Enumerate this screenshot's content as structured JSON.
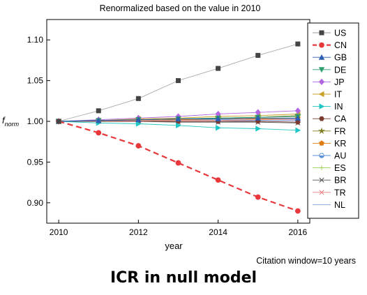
{
  "chart_data": {
    "type": "line",
    "title": "Renormalized based on the value in 2010",
    "xlabel": "year",
    "ylabel": "f",
    "ylabel_sub": "norm",
    "xlim": [
      2009.7,
      2016.3
    ],
    "ylim": [
      0.875,
      1.125
    ],
    "xticks": [
      2010,
      2012,
      2014,
      2016
    ],
    "yticks": [
      0.9,
      0.95,
      1.0,
      1.05,
      1.1
    ],
    "ytick_labels": [
      "0.90",
      "0.95",
      "1.00",
      "1.05",
      "1.10"
    ],
    "grid": false,
    "legend_position": "right",
    "note": "Citation window=10 years",
    "x": [
      2010,
      2011,
      2012,
      2013,
      2014,
      2015,
      2016
    ],
    "series": [
      {
        "name": "US",
        "color": "#444444",
        "marker": "square",
        "values": [
          1.0,
          1.013,
          1.028,
          1.05,
          1.065,
          1.081,
          1.095
        ]
      },
      {
        "name": "CN",
        "color": "#e8383b",
        "marker": "circle",
        "dashed": true,
        "values": [
          1.0,
          0.986,
          0.97,
          0.949,
          0.928,
          0.907,
          0.89
        ]
      },
      {
        "name": "GB",
        "color": "#2a5db0",
        "marker": "triangle",
        "values": [
          1.0,
          1.001,
          1.002,
          1.003,
          1.003,
          1.004,
          1.004
        ]
      },
      {
        "name": "DE",
        "color": "#2e9e6e",
        "marker": "tri-down",
        "values": [
          1.0,
          1.001,
          1.002,
          1.003,
          1.004,
          1.005,
          1.006
        ]
      },
      {
        "name": "JP",
        "color": "#b266e0",
        "marker": "diamond",
        "values": [
          1.0,
          1.002,
          1.004,
          1.006,
          1.009,
          1.011,
          1.013
        ]
      },
      {
        "name": "IT",
        "color": "#c9a227",
        "marker": "tri-left",
        "values": [
          1.0,
          1.001,
          1.003,
          1.004,
          1.006,
          1.007,
          1.009
        ]
      },
      {
        "name": "IN",
        "color": "#1fc6c6",
        "marker": "tri-right",
        "values": [
          1.0,
          0.998,
          0.997,
          0.995,
          0.992,
          0.991,
          0.989
        ]
      },
      {
        "name": "CA",
        "color": "#7a3b2e",
        "marker": "hexagon",
        "values": [
          1.0,
          1.0,
          1.0,
          1.0,
          1.0,
          1.0,
          0.999
        ]
      },
      {
        "name": "FR",
        "color": "#7d7d1f",
        "marker": "star",
        "values": [
          1.0,
          1.001,
          1.002,
          1.003,
          1.004,
          1.005,
          1.007
        ]
      },
      {
        "name": "KR",
        "color": "#e07b10",
        "marker": "pentagon",
        "values": [
          1.0,
          1.001,
          1.002,
          1.002,
          1.003,
          1.003,
          1.004
        ]
      },
      {
        "name": "AU",
        "color": "#5b8fd6",
        "marker": "circle-half",
        "values": [
          1.0,
          1.0,
          1.0,
          1.0,
          1.0,
          1.001,
          1.001
        ]
      },
      {
        "name": "ES",
        "color": "#9acd5a",
        "marker": "plus",
        "values": [
          1.0,
          1.001,
          1.002,
          1.002,
          1.003,
          1.003,
          1.004
        ]
      },
      {
        "name": "BR",
        "color": "#555555",
        "marker": "x",
        "values": [
          1.0,
          1.0,
          1.0,
          0.999,
          0.999,
          0.999,
          0.998
        ]
      },
      {
        "name": "TR",
        "color": "#f08080",
        "marker": "x",
        "values": [
          1.0,
          1.0,
          1.001,
          1.001,
          1.001,
          1.002,
          1.002
        ]
      },
      {
        "name": "NL",
        "color": "#7fa7e0",
        "marker": "none",
        "values": [
          1.0,
          1.001,
          1.001,
          1.002,
          1.002,
          1.003,
          1.003
        ]
      }
    ]
  },
  "caption": "ICR in null model"
}
